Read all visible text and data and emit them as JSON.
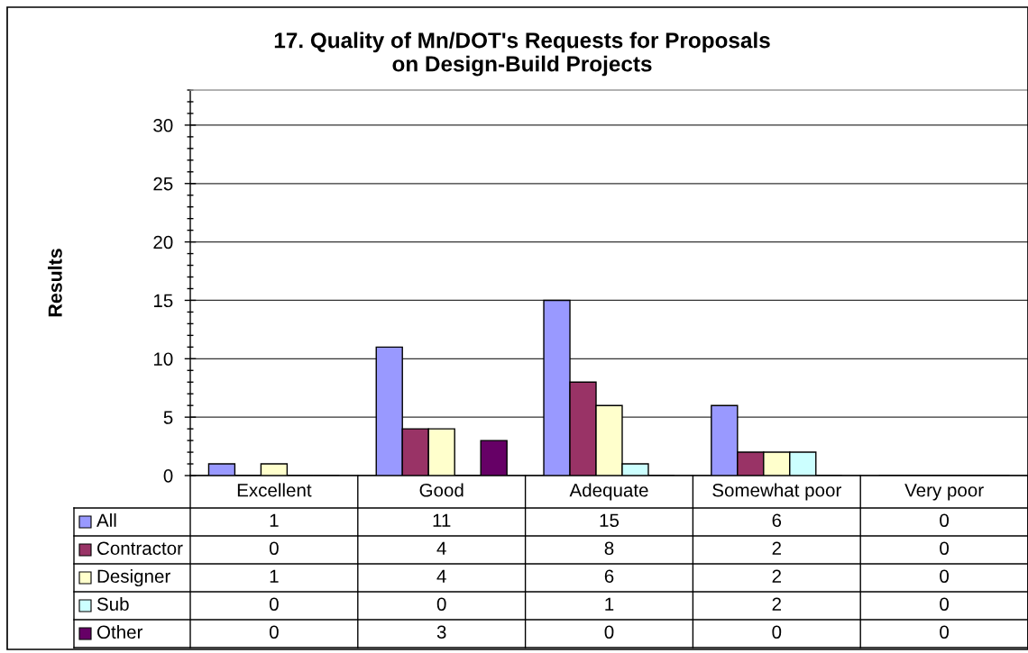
{
  "chart_data": {
    "type": "bar",
    "title": "17. Quality of Mn/DOT's Requests for Proposals\non Design-Build Projects",
    "ylabel": "Results",
    "categories": [
      "Excellent",
      "Good",
      "Adequate",
      "Somewhat poor",
      "Very poor"
    ],
    "series": [
      {
        "name": "All",
        "color": "#9999ff",
        "values": [
          1,
          11,
          15,
          6,
          0
        ]
      },
      {
        "name": "Contractor",
        "color": "#993366",
        "values": [
          0,
          4,
          8,
          2,
          0
        ]
      },
      {
        "name": "Designer",
        "color": "#ffffcc",
        "values": [
          1,
          4,
          6,
          2,
          0
        ]
      },
      {
        "name": "Sub",
        "color": "#ccffff",
        "values": [
          0,
          0,
          1,
          2,
          0
        ]
      },
      {
        "name": "Other",
        "color": "#660066",
        "values": [
          0,
          3,
          0,
          0,
          0
        ]
      }
    ],
    "ylim": [
      0,
      33
    ],
    "yticks": [
      0,
      {
        "value": 1,
        "label": null
      },
      {
        "value": 2,
        "label": null
      },
      {
        "value": 3,
        "label": null
      },
      {
        "value": 4,
        "label": null
      },
      5,
      {
        "value": 6,
        "label": null
      },
      {
        "value": 7,
        "label": null
      },
      {
        "value": 8,
        "label": null
      },
      {
        "value": 9,
        "label": null
      },
      10,
      {
        "value": 11,
        "label": null
      },
      {
        "value": 12,
        "label": null
      },
      {
        "value": 13,
        "label": null
      },
      {
        "value": 14,
        "label": null
      },
      15,
      {
        "value": 16,
        "label": null
      },
      {
        "value": 17,
        "label": null
      },
      {
        "value": 18,
        "label": null
      },
      {
        "value": 19,
        "label": null
      },
      20,
      {
        "value": 21,
        "label": null
      },
      {
        "value": 22,
        "label": null
      },
      {
        "value": 23,
        "label": null
      },
      {
        "value": 24,
        "label": null
      },
      25,
      {
        "value": 26,
        "label": null
      },
      {
        "value": 27,
        "label": null
      },
      {
        "value": 28,
        "label": null
      },
      {
        "value": 29,
        "label": null
      },
      30,
      {
        "value": 31,
        "label": null
      },
      {
        "value": 32,
        "label": null
      },
      {
        "value": 33,
        "label": null
      }
    ],
    "grid": "y",
    "legend": "bottom left",
    "data_labels": true
  }
}
